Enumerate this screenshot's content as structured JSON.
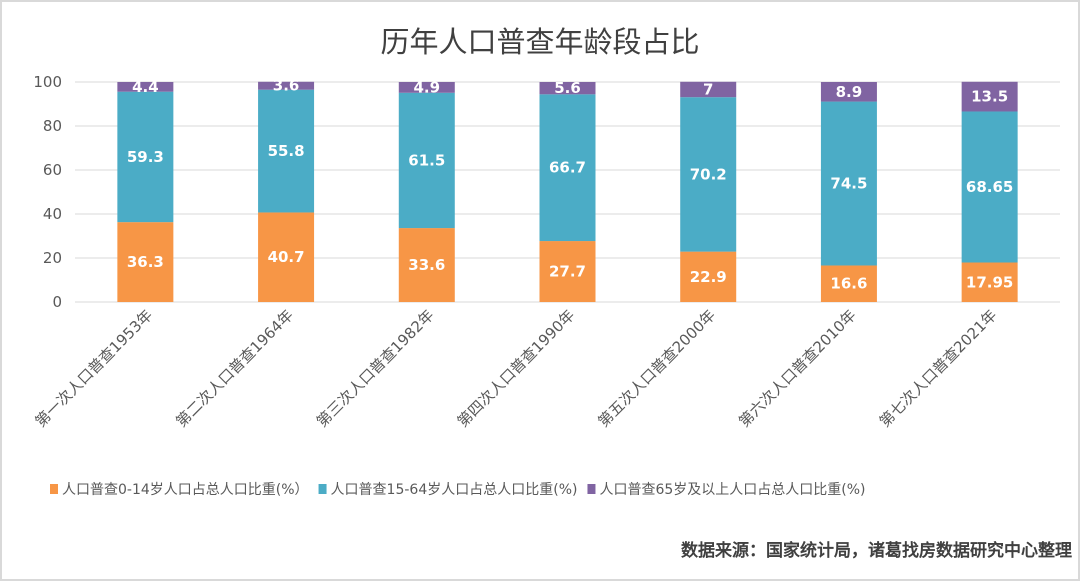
{
  "chart_data": {
    "type": "bar",
    "stacked": true,
    "title": "历年人口普查年龄段占比",
    "categories": [
      "第一次人口普查1953年",
      "第二次人口普查1964年",
      "第三次人口普查1982年",
      "第四次人口普查1990年",
      "第五次人口普查2000年",
      "第六次人口普查2010年",
      "第七次人口普查2021年"
    ],
    "series": [
      {
        "name": "人口普查0-14岁人口占总人口比重(%）",
        "color": "#F79646",
        "values": [
          36.3,
          40.7,
          33.6,
          27.7,
          22.9,
          16.6,
          17.95
        ]
      },
      {
        "name": "人口普查15-64岁人口占总人口比重(%)",
        "color": "#4BACC6",
        "values": [
          59.3,
          55.8,
          61.5,
          66.7,
          70.2,
          74.5,
          68.65
        ]
      },
      {
        "name": "人口普查65岁及以上人口占总人口比重(%)",
        "color": "#8064A2",
        "values": [
          4.4,
          3.6,
          4.9,
          5.6,
          7,
          8.9,
          13.5
        ]
      }
    ],
    "ylim": [
      0,
      100
    ],
    "yticks": [
      0,
      20,
      40,
      60,
      80,
      100
    ],
    "grid": true,
    "legend": "bottom",
    "xlabel": "",
    "ylabel": ""
  },
  "source": "数据来源：国家统计局，诸葛找房数据研究中心整理"
}
